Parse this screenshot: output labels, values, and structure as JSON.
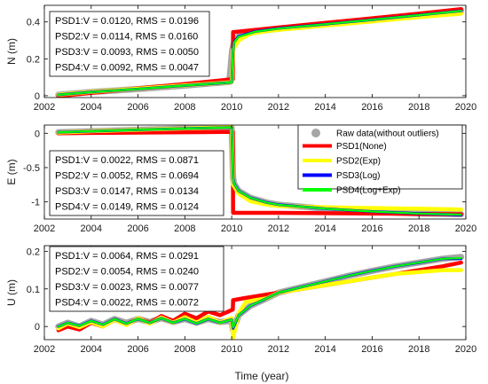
{
  "chart_data": {
    "type": "line",
    "xlabel": "Time (year)",
    "x_ticks": [
      "2002",
      "2004",
      "2006",
      "2008",
      "2010",
      "2012",
      "2014",
      "2016",
      "2018",
      "2020"
    ],
    "xlim": [
      2002,
      2020
    ],
    "legend": {
      "placement": "right of E panel",
      "entries": [
        {
          "label": "Raw data(without outliers)",
          "color": "#a6a6a6",
          "kind": "marker"
        },
        {
          "label": "PSD1(None)",
          "color": "#ff0000",
          "kind": "line"
        },
        {
          "label": "PSD2(Exp)",
          "color": "#ffff00",
          "kind": "line"
        },
        {
          "label": "PSD3(Log)",
          "color": "#0000ff",
          "kind": "line"
        },
        {
          "label": "PSD4(Log+Exp)",
          "color": "#00ff00",
          "kind": "line"
        }
      ]
    },
    "panels": [
      {
        "id": "N",
        "ylabel": "N (m)",
        "ylim": [
          -0.01,
          0.49
        ],
        "y_ticks": [
          "0",
          "0.2",
          "0.4"
        ],
        "y_tick_values": [
          0,
          0.2,
          0.4
        ],
        "stats": [
          "PSD1:V = 0.0120, RMS = 0.0196",
          "PSD2:V = 0.0114, RMS = 0.0160",
          "PSD3:V = 0.0093, RMS = 0.0050",
          "PSD4:V = 0.0092, RMS = 0.0047"
        ],
        "series": [
          {
            "name": "Raw data(without outliers)",
            "x": [
              2002.6,
              2004,
              2006,
              2008,
              2009.9,
              2010.02,
              2010.1,
              2010.3,
              2011,
              2012,
              2014,
              2016,
              2018,
              2019.8
            ],
            "values": [
              0.005,
              0.02,
              0.036,
              0.055,
              0.075,
              0.245,
              0.29,
              0.322,
              0.348,
              0.363,
              0.387,
              0.41,
              0.437,
              0.462
            ]
          },
          {
            "name": "PSD1(None)",
            "x": [
              2002.6,
              2004,
              2006,
              2008,
              2010.05,
              2010.06,
              2012,
              2014,
              2016,
              2018,
              2019.8
            ],
            "values": [
              -0.002,
              0.015,
              0.04,
              0.063,
              0.09,
              0.345,
              0.37,
              0.395,
              0.42,
              0.445,
              0.47
            ]
          },
          {
            "name": "PSD2(Exp)",
            "x": [
              2002.6,
              2004,
              2006,
              2008,
              2010.0,
              2010.06,
              2010.3,
              2010.8,
              2011.5,
              2012,
              2014,
              2016,
              2018,
              2019.8
            ],
            "values": [
              0.006,
              0.021,
              0.038,
              0.056,
              0.073,
              0.25,
              0.3,
              0.336,
              0.35,
              0.357,
              0.38,
              0.403,
              0.426,
              0.445
            ]
          },
          {
            "name": "PSD3(Log)",
            "x": [
              2002.6,
              2004,
              2006,
              2008,
              2010.0,
              2010.06,
              2010.1,
              2010.3,
              2011,
              2012,
              2014,
              2016,
              2018,
              2019.8
            ],
            "values": [
              0.005,
              0.02,
              0.036,
              0.055,
              0.072,
              0.245,
              0.29,
              0.322,
              0.348,
              0.365,
              0.388,
              0.412,
              0.437,
              0.46
            ]
          },
          {
            "name": "PSD4(Log+Exp)",
            "x": [
              2002.6,
              2004,
              2006,
              2008,
              2010.0,
              2010.06,
              2010.1,
              2010.3,
              2011,
              2012,
              2014,
              2016,
              2018,
              2019.8
            ],
            "values": [
              0.005,
              0.02,
              0.036,
              0.055,
              0.072,
              0.243,
              0.288,
              0.32,
              0.347,
              0.364,
              0.388,
              0.412,
              0.437,
              0.46
            ]
          }
        ]
      },
      {
        "id": "E",
        "ylabel": "E (m)",
        "ylim": [
          -1.25,
          0.12
        ],
        "y_ticks": [
          "0",
          "-0.5",
          "-1"
        ],
        "y_tick_values": [
          0,
          -0.5,
          -1
        ],
        "stats": [
          "PSD1:V = 0.0022, RMS = 0.0871",
          "PSD2:V = 0.0052, RMS = 0.0694",
          "PSD3:V = 0.0147, RMS = 0.0134",
          "PSD4:V = 0.0149, RMS = 0.0124"
        ],
        "series": [
          {
            "name": "Raw data(without outliers)",
            "x": [
              2002.6,
              2004,
              2006,
              2008,
              2010.0,
              2010.06,
              2010.1,
              2010.3,
              2010.8,
              2011.5,
              2012,
              2014,
              2016,
              2018,
              2019.8
            ],
            "values": [
              0.015,
              0.03,
              0.05,
              0.07,
              0.085,
              -0.65,
              -0.73,
              -0.84,
              -0.94,
              -1.01,
              -1.04,
              -1.1,
              -1.14,
              -1.17,
              -1.18
            ]
          },
          {
            "name": "PSD1(None)",
            "x": [
              2002.6,
              2004,
              2006,
              2008,
              2010.05,
              2010.06,
              2012,
              2014,
              2016,
              2018,
              2019.8
            ],
            "values": [
              0.0,
              0.005,
              0.01,
              0.015,
              0.02,
              -1.16,
              -1.16,
              -1.165,
              -1.17,
              -1.175,
              -1.18
            ]
          },
          {
            "name": "PSD2(Exp)",
            "x": [
              2002.6,
              2004,
              2006,
              2008,
              2010.0,
              2010.06,
              2010.3,
              2010.8,
              2011.5,
              2012,
              2014,
              2016,
              2018,
              2019.8
            ],
            "values": [
              0.01,
              0.03,
              0.05,
              0.07,
              0.09,
              -0.75,
              -0.88,
              -0.99,
              -1.04,
              -1.06,
              -1.08,
              -1.09,
              -1.1,
              -1.11
            ]
          },
          {
            "name": "PSD3(Log)",
            "x": [
              2002.6,
              2004,
              2006,
              2008,
              2010.0,
              2010.06,
              2010.1,
              2010.3,
              2010.8,
              2011.5,
              2012,
              2014,
              2016,
              2018,
              2019.8
            ],
            "values": [
              0.015,
              0.03,
              0.05,
              0.07,
              0.085,
              -0.65,
              -0.73,
              -0.84,
              -0.94,
              -1.01,
              -1.04,
              -1.1,
              -1.14,
              -1.17,
              -1.19
            ]
          },
          {
            "name": "PSD4(Log+Exp)",
            "x": [
              2002.6,
              2004,
              2006,
              2008,
              2010.0,
              2010.06,
              2010.1,
              2010.3,
              2010.8,
              2011.5,
              2012,
              2014,
              2016,
              2018,
              2019.8
            ],
            "values": [
              0.015,
              0.03,
              0.05,
              0.07,
              0.085,
              -0.65,
              -0.73,
              -0.84,
              -0.94,
              -1.01,
              -1.04,
              -1.1,
              -1.14,
              -1.17,
              -1.185
            ]
          }
        ]
      },
      {
        "id": "U",
        "ylabel": "U (m)",
        "ylim": [
          -0.035,
          0.215
        ],
        "y_ticks": [
          "0",
          "0.1",
          "0.2"
        ],
        "y_tick_values": [
          0,
          0.1,
          0.2
        ],
        "stats": [
          "PSD1:V = 0.0064, RMS = 0.0291",
          "PSD2:V = 0.0054, RMS = 0.0240",
          "PSD3:V = 0.0023, RMS = 0.0077",
          "PSD4:V = 0.0022, RMS = 0.0072"
        ],
        "series": [
          {
            "name": "Raw data(without outliers)",
            "x": [
              2002.6,
              2003,
              2003.5,
              2004,
              2004.5,
              2005,
              2005.5,
              2006,
              2006.5,
              2007,
              2007.5,
              2008,
              2008.5,
              2009,
              2009.5,
              2010.0,
              2010.06,
              2010.3,
              2010.8,
              2011.5,
              2012,
              2013,
              2014,
              2015,
              2016,
              2017,
              2018,
              2019,
              2019.8
            ],
            "values": [
              0.0,
              0.01,
              0.0,
              0.015,
              0.005,
              0.02,
              0.01,
              0.02,
              0.012,
              0.022,
              0.012,
              0.02,
              0.01,
              0.02,
              0.012,
              0.015,
              -0.01,
              0.03,
              0.055,
              0.075,
              0.09,
              0.105,
              0.12,
              0.135,
              0.148,
              0.16,
              0.17,
              0.18,
              0.185
            ]
          },
          {
            "name": "PSD1(None)",
            "x": [
              2002.6,
              2003,
              2003.5,
              2004,
              2004.5,
              2005,
              2005.5,
              2006,
              2006.5,
              2007,
              2007.5,
              2008,
              2008.5,
              2009,
              2009.5,
              2010.05,
              2010.06,
              2010.5,
              2011,
              2012,
              2013,
              2014,
              2015,
              2016,
              2017,
              2018,
              2019,
              2019.8
            ],
            "values": [
              -0.01,
              0.0,
              -0.008,
              0.01,
              0.0,
              0.018,
              0.005,
              0.022,
              0.01,
              0.028,
              0.015,
              0.034,
              0.022,
              0.04,
              0.03,
              0.045,
              0.07,
              0.075,
              0.08,
              0.09,
              0.1,
              0.11,
              0.12,
              0.13,
              0.14,
              0.15,
              0.16,
              0.17
            ]
          },
          {
            "name": "PSD2(Exp)",
            "x": [
              2002.6,
              2003,
              2003.5,
              2004,
              2004.5,
              2005,
              2005.5,
              2006,
              2006.5,
              2007,
              2007.5,
              2008,
              2008.5,
              2009,
              2009.5,
              2010.0,
              2010.06,
              2010.3,
              2010.6,
              2011,
              2011.5,
              2012,
              2013,
              2014,
              2015,
              2016,
              2017,
              2018,
              2019,
              2019.8
            ],
            "values": [
              -0.005,
              0.008,
              -0.002,
              0.012,
              0.0,
              0.018,
              0.004,
              0.022,
              0.008,
              0.024,
              0.01,
              0.025,
              0.01,
              0.026,
              0.01,
              0.022,
              -0.03,
              0.035,
              0.065,
              0.07,
              0.075,
              0.09,
              0.1,
              0.11,
              0.12,
              0.13,
              0.14,
              0.145,
              0.15,
              0.15
            ]
          },
          {
            "name": "PSD3(Log)",
            "x": [
              2002.6,
              2003,
              2003.5,
              2004,
              2004.5,
              2005,
              2005.5,
              2006,
              2006.5,
              2007,
              2007.5,
              2008,
              2008.5,
              2009,
              2009.5,
              2010.0,
              2010.06,
              2010.3,
              2010.8,
              2011.5,
              2012,
              2013,
              2014,
              2015,
              2016,
              2017,
              2018,
              2019,
              2019.8
            ],
            "values": [
              0.0,
              0.01,
              0.002,
              0.015,
              0.005,
              0.02,
              0.008,
              0.02,
              0.01,
              0.022,
              0.01,
              0.02,
              0.008,
              0.02,
              0.01,
              0.018,
              -0.005,
              0.03,
              0.055,
              0.075,
              0.09,
              0.105,
              0.12,
              0.135,
              0.148,
              0.16,
              0.17,
              0.18,
              0.18
            ]
          },
          {
            "name": "PSD4(Log+Exp)",
            "x": [
              2002.6,
              2003,
              2003.5,
              2004,
              2004.5,
              2005,
              2005.5,
              2006,
              2006.5,
              2007,
              2007.5,
              2008,
              2008.5,
              2009,
              2009.5,
              2010.0,
              2010.06,
              2010.3,
              2010.8,
              2011.5,
              2012,
              2013,
              2014,
              2015,
              2016,
              2017,
              2018,
              2019,
              2019.8
            ],
            "values": [
              0.0,
              0.01,
              0.002,
              0.015,
              0.005,
              0.02,
              0.008,
              0.02,
              0.01,
              0.022,
              0.01,
              0.02,
              0.008,
              0.02,
              0.01,
              0.018,
              -0.003,
              0.03,
              0.055,
              0.075,
              0.09,
              0.105,
              0.12,
              0.135,
              0.148,
              0.16,
              0.17,
              0.18,
              0.182
            ]
          }
        ]
      }
    ]
  }
}
